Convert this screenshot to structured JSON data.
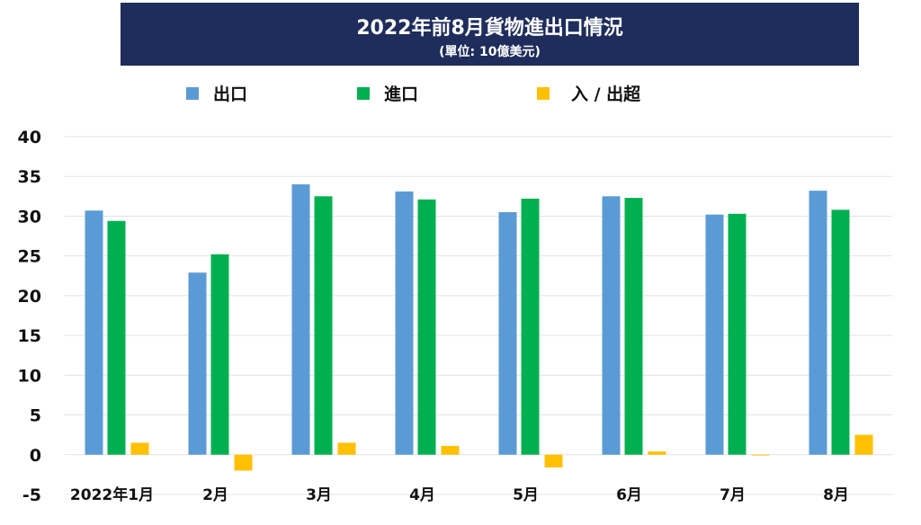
{
  "chart_data": {
    "type": "bar",
    "title": "2022年前8月貨物進出口情況",
    "subtitle": "(單位: 10億美元)",
    "categories": [
      "2022年1月",
      "2月",
      "3月",
      "4月",
      "5月",
      "6月",
      "7月",
      "8月"
    ],
    "series": [
      {
        "name": "出口",
        "color": "#5b9bd5",
        "values": [
          30.7,
          22.9,
          34.0,
          33.1,
          30.5,
          32.5,
          30.2,
          33.2
        ]
      },
      {
        "name": "進口",
        "color": "#00b050",
        "values": [
          29.4,
          25.2,
          32.5,
          32.1,
          32.2,
          32.3,
          30.3,
          30.8
        ]
      },
      {
        "name": "入 / 出超",
        "color": "#ffc000",
        "values": [
          1.5,
          -2.0,
          1.5,
          1.1,
          -1.6,
          0.4,
          -0.1,
          2.5
        ]
      }
    ],
    "ylim": [
      -5,
      40
    ],
    "yticks": [
      "40",
      "35",
      "30",
      "25",
      "20",
      "15",
      "10",
      "5",
      "0",
      "-5"
    ],
    "grid": true,
    "legend": "top"
  }
}
